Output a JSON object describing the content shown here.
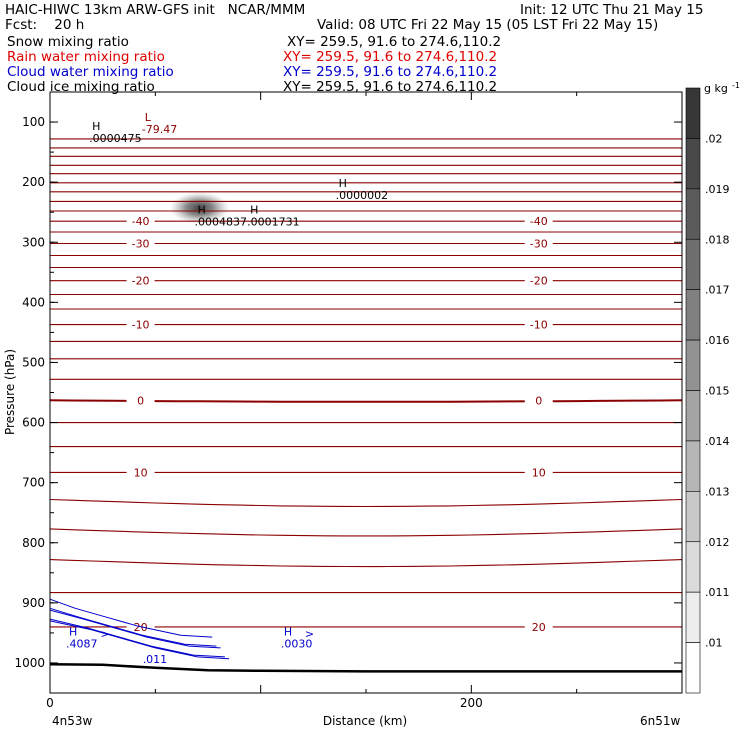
{
  "header": {
    "line1_left": "HAIC-HIWC 13km ARW-GFS init   NCAR/MMM",
    "line1_right": "Init: 12 UTC Thu 21 May 15",
    "line2_left": "Fcst:    20 h",
    "line2_right": "Valid: 08 UTC Fri 22 May 15 (05 LST Fri 22 May 15)",
    "fields": [
      {
        "name": "Snow mixing ratio",
        "xy": "XY= 259.5, 91.6 to 274.6,110.2",
        "color": "#000000"
      },
      {
        "name": "Rain water mixing ratio",
        "xy": "XY= 259.5, 91.6 to 274.6,110.2",
        "color": "#e00000"
      },
      {
        "name": "Cloud water mixing ratio",
        "xy": "XY= 259.5, 91.6 to 274.6,110.2",
        "color": "#0000cc"
      },
      {
        "name": "Cloud ice mixing ratio",
        "xy": "XY= 259.5, 91.6 to 274.6,110.2",
        "color": "#000000"
      }
    ]
  },
  "colors": {
    "temperature_contour": "#8b0000",
    "cloud_water_contour": "#0000cc",
    "terrain": "#000000"
  },
  "chart_data": {
    "type": "cross-section",
    "xlabel": "Distance (km)",
    "ylabel": "Pressure (hPa)",
    "xlim": [
      0,
      300
    ],
    "ylim": [
      1050,
      50
    ],
    "x_ticks": [
      0,
      200
    ],
    "y_ticks": [
      100,
      200,
      300,
      400,
      500,
      600,
      700,
      800,
      900,
      1000
    ],
    "endpoint_left": "4n53w",
    "endpoint_right": "6n51w",
    "colorbar": {
      "unit_label": "g kg",
      "unit_exponent": "-1",
      "levels": [
        ".02",
        ".019",
        ".018",
        ".017",
        ".016",
        ".015",
        ".014",
        ".013",
        ".012",
        ".011",
        ".01"
      ]
    },
    "temperature_contours": [
      {
        "p": 128,
        "label": ""
      },
      {
        "p": 143,
        "label": ""
      },
      {
        "p": 157,
        "label": ""
      },
      {
        "p": 172,
        "label": ""
      },
      {
        "p": 186,
        "label": ""
      },
      {
        "p": 201,
        "label": ""
      },
      {
        "p": 216,
        "label": ""
      },
      {
        "p": 232,
        "label": ""
      },
      {
        "p": 248,
        "label": ""
      },
      {
        "p": 265,
        "label": "-40"
      },
      {
        "p": 283,
        "label": ""
      },
      {
        "p": 302,
        "label": "-30"
      },
      {
        "p": 322,
        "label": ""
      },
      {
        "p": 342,
        "label": ""
      },
      {
        "p": 364,
        "label": "-20"
      },
      {
        "p": 387,
        "label": ""
      },
      {
        "p": 411,
        "label": ""
      },
      {
        "p": 437,
        "label": "-10"
      },
      {
        "p": 465,
        "label": ""
      },
      {
        "p": 494,
        "label": ""
      },
      {
        "p": 528,
        "label": ""
      },
      {
        "p": 563,
        "label": "0"
      },
      {
        "p": 600,
        "label": ""
      },
      {
        "p": 640,
        "label": ""
      },
      {
        "p": 683,
        "label": "10"
      },
      {
        "p": 728,
        "label": ""
      },
      {
        "p": 777,
        "label": ""
      },
      {
        "p": 828,
        "label": ""
      },
      {
        "p": 883,
        "label": ""
      },
      {
        "p": 940,
        "label": "20"
      }
    ],
    "annotations": [
      {
        "kind": "H",
        "value": ".0000475",
        "x": 20,
        "p": 120
      },
      {
        "kind": "L",
        "value": "-79.47",
        "x": 45,
        "p": 105
      },
      {
        "kind": "H",
        "value": ".0004837",
        "x": 70,
        "p": 259
      },
      {
        "kind": "H",
        "value": ".0001731",
        "x": 95,
        "p": 259
      },
      {
        "kind": "H",
        "value": ".0000002",
        "x": 137,
        "p": 215
      },
      {
        "kind": "H",
        "value": ".4087",
        "x": 9,
        "p": 961
      },
      {
        "kind": "H",
        "value": ".0030",
        "x": 111,
        "p": 961
      }
    ],
    "extra_labels": [
      {
        "text": ".011",
        "x": 44,
        "p": 1000
      },
      {
        "text": ">",
        "x": 121,
        "p": 958
      },
      {
        "text": ">",
        "x": 24,
        "p": 958
      }
    ],
    "snow_maximum": {
      "x": 71,
      "p": 243,
      "value": ".0004837"
    }
  }
}
